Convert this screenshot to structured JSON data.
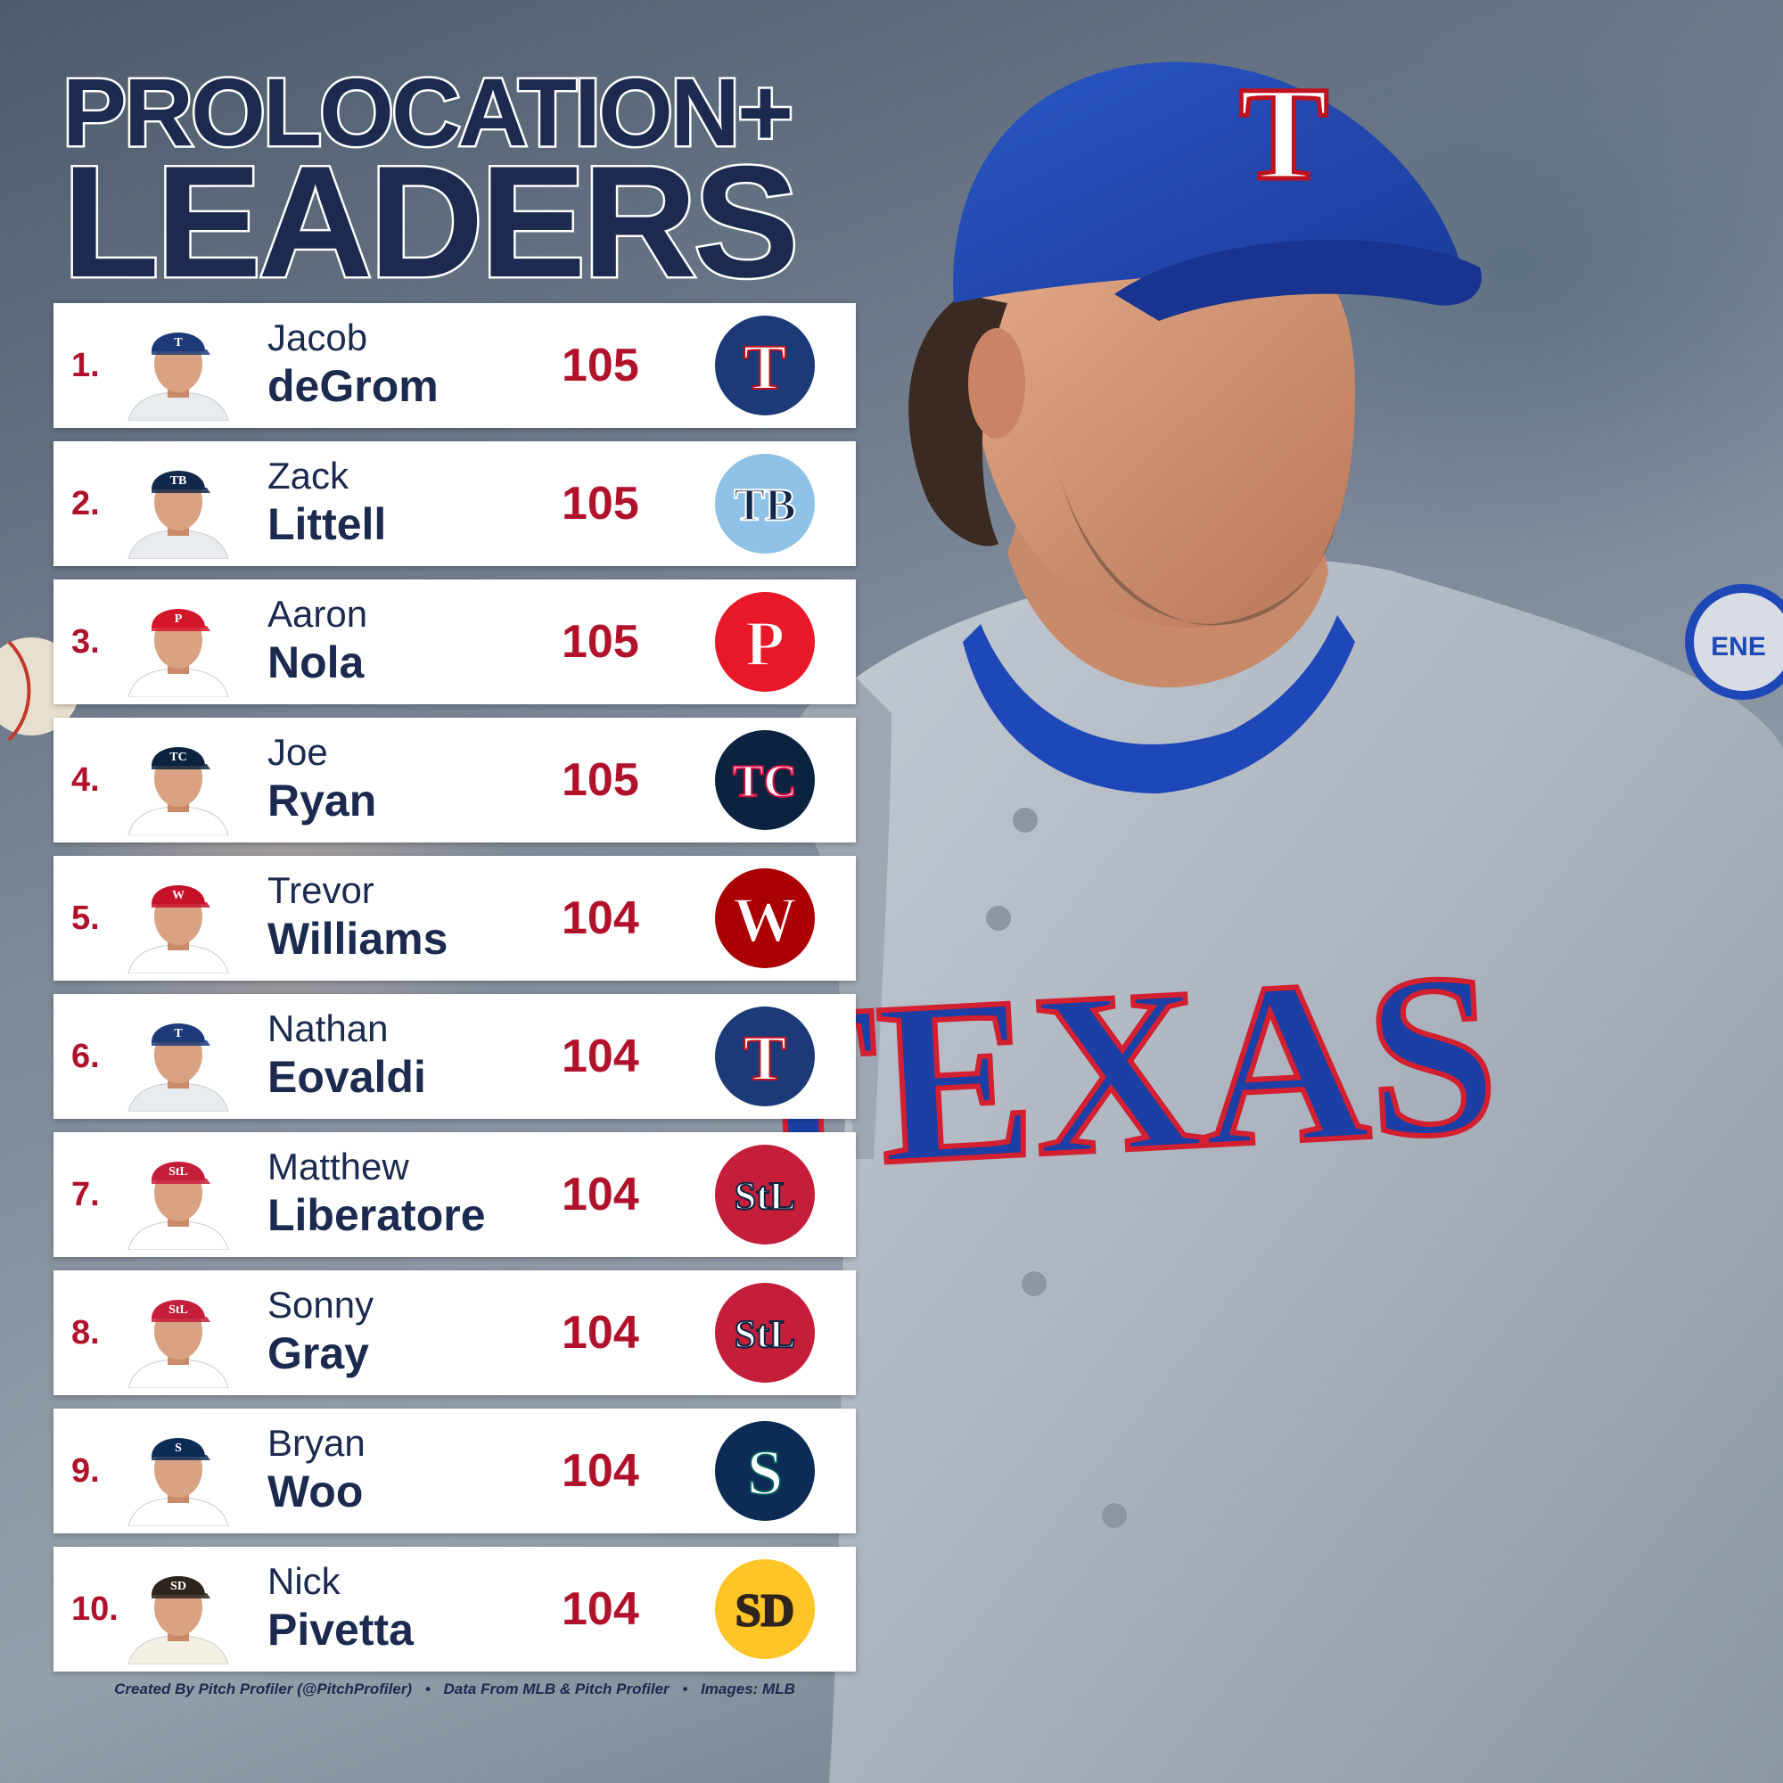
{
  "title_line1": "PROLOCATION+",
  "title_line2": "LEADERS",
  "hero": {
    "cap_letter": "T",
    "jersey_text": "TEXAS",
    "patch_text": "ENE"
  },
  "leaders": [
    {
      "rank": "1.",
      "first": "Jacob",
      "last": "deGrom",
      "score": "105",
      "team_logo_text": "T",
      "cap_letter": "T",
      "team_logo_icon": "texas-rangers-logo-icon",
      "logo_bg": "#1c3a78",
      "logo_fg": "#ffffff",
      "logo_accent": "#c0111f",
      "cap_color": "#1c3a78",
      "jersey_color": "#e9ecef"
    },
    {
      "rank": "2.",
      "first": "Zack",
      "last": "Littell",
      "score": "105",
      "team_logo_text": "TB",
      "cap_letter": "TB",
      "team_logo_icon": "tampa-bay-rays-logo-icon",
      "logo_bg": "#8fc2e6",
      "logo_fg": "#12284b",
      "logo_accent": "#ffffff",
      "cap_color": "#12284b",
      "jersey_color": "#e9ecef"
    },
    {
      "rank": "3.",
      "first": "Aaron",
      "last": "Nola",
      "score": "105",
      "team_logo_text": "P",
      "cap_letter": "P",
      "team_logo_icon": "philadelphia-phillies-logo-icon",
      "logo_bg": "#e81828",
      "logo_fg": "#ffffff",
      "logo_accent": "#e81828",
      "cap_color": "#d3172a",
      "jersey_color": "#ffffff"
    },
    {
      "rank": "4.",
      "first": "Joe",
      "last": "Ryan",
      "score": "105",
      "team_logo_text": "TC",
      "cap_letter": "TC",
      "team_logo_icon": "minnesota-twins-logo-icon",
      "logo_bg": "#0c2340",
      "logo_fg": "#ffffff",
      "logo_accent": "#d31145",
      "cap_color": "#0c2340",
      "jersey_color": "#ffffff"
    },
    {
      "rank": "5.",
      "first": "Trevor",
      "last": "Williams",
      "score": "104",
      "team_logo_text": "W",
      "cap_letter": "W",
      "team_logo_icon": "washington-nationals-logo-icon",
      "logo_bg": "#ab0003",
      "logo_fg": "#ffffff",
      "logo_accent": "#ab0003",
      "cap_color": "#c5122a",
      "jersey_color": "#ffffff"
    },
    {
      "rank": "6.",
      "first": "Nathan",
      "last": "Eovaldi",
      "score": "104",
      "team_logo_text": "T",
      "cap_letter": "T",
      "team_logo_icon": "texas-rangers-logo-icon",
      "logo_bg": "#1c3a78",
      "logo_fg": "#ffffff",
      "logo_accent": "#c0111f",
      "cap_color": "#1c3a78",
      "jersey_color": "#e9ecef"
    },
    {
      "rank": "7.",
      "first": "Matthew",
      "last": "Liberatore",
      "score": "104",
      "team_logo_text": "StL",
      "cap_letter": "StL",
      "team_logo_icon": "st-louis-cardinals-logo-icon",
      "logo_bg": "#c41e3a",
      "logo_fg": "#ffffff",
      "logo_accent": "#0c2340",
      "cap_color": "#c41e3a",
      "jersey_color": "#ffffff"
    },
    {
      "rank": "8.",
      "first": "Sonny",
      "last": "Gray",
      "score": "104",
      "team_logo_text": "StL",
      "cap_letter": "StL",
      "team_logo_icon": "st-louis-cardinals-logo-icon",
      "logo_bg": "#c41e3a",
      "logo_fg": "#ffffff",
      "logo_accent": "#0c2340",
      "cap_color": "#c41e3a",
      "jersey_color": "#ffffff"
    },
    {
      "rank": "9.",
      "first": "Bryan",
      "last": "Woo",
      "score": "104",
      "team_logo_text": "S",
      "cap_letter": "S",
      "team_logo_icon": "seattle-mariners-logo-icon",
      "logo_bg": "#0c2c56",
      "logo_fg": "#ffffff",
      "logo_accent": "#005c5c",
      "cap_color": "#0c2c56",
      "jersey_color": "#ffffff"
    },
    {
      "rank": "10.",
      "first": "Nick",
      "last": "Pivetta",
      "score": "104",
      "team_logo_text": "SD",
      "cap_letter": "SD",
      "team_logo_icon": "san-diego-padres-logo-icon",
      "logo_bg": "#ffc425",
      "logo_fg": "#2f241d",
      "logo_accent": "#2f241d",
      "cap_color": "#2f241d",
      "jersey_color": "#f3efe3"
    }
  ],
  "footer": {
    "created_by": "Created By Pitch Profiler (@PitchProfiler)",
    "data_source": "Data From MLB & Pitch Profiler",
    "images": "Images: MLB"
  },
  "colors": {
    "navy": "#1b2a4e",
    "accent_red": "#b1122b",
    "row_bg": "#ffffff"
  }
}
